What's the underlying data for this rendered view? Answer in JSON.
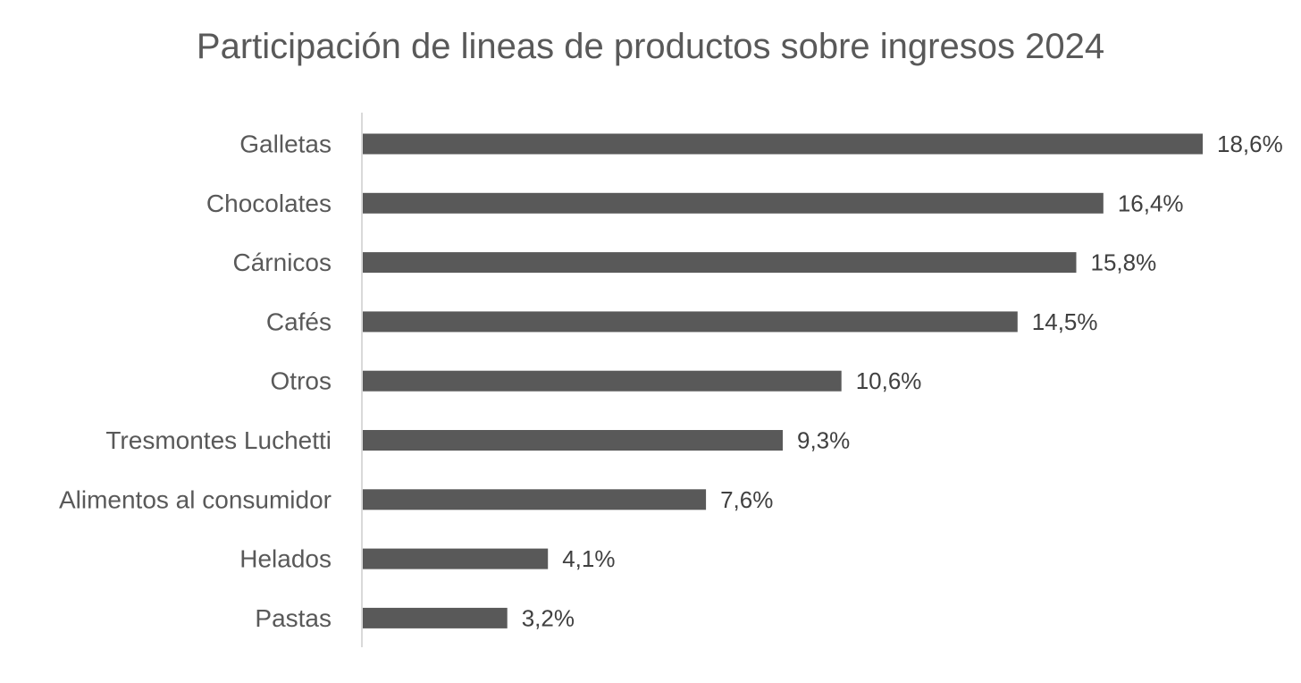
{
  "chart_data": {
    "type": "bar",
    "orientation": "horizontal",
    "title": "Participación de lineas de productos sobre ingresos 2024",
    "categories": [
      "Galletas",
      "Chocolates",
      "Cárnicos",
      "Cafés",
      "Otros",
      "Tresmontes Luchetti",
      "Alimentos al consumidor",
      "Helados",
      "Pastas"
    ],
    "values": [
      18.6,
      16.4,
      15.8,
      14.5,
      10.6,
      9.3,
      7.6,
      4.1,
      3.2
    ],
    "data_labels": [
      "18,6%",
      "16,4%",
      "15,8%",
      "14,5%",
      "10,6%",
      "9,3%",
      "7,6%",
      "4,1%",
      "3,2%"
    ],
    "unit": "%",
    "xlabel": "",
    "ylabel": "",
    "xlim": [
      0,
      18.6
    ],
    "grid": false,
    "legend": "none",
    "bar_color": "#595959",
    "axis_color": "#d9d9d9"
  }
}
